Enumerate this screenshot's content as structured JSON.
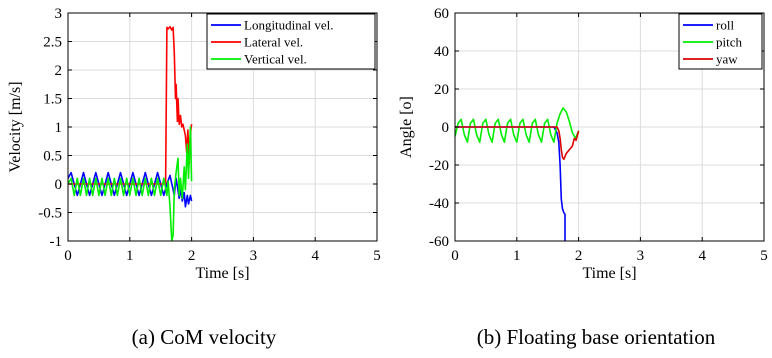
{
  "chart_data": [
    {
      "type": "line",
      "xlabel": "Time [s]",
      "ylabel": "Velocity [m/s]",
      "xlim": [
        0,
        5
      ],
      "ylim": [
        -1,
        3
      ],
      "xticks": [
        0,
        1,
        2,
        3,
        4,
        5
      ],
      "yticks": [
        -1,
        -0.5,
        0,
        0.5,
        1,
        1.5,
        2,
        2.5,
        3
      ],
      "ytick_labels": [
        "-1",
        "-0.5",
        "0",
        "0.5",
        "1",
        "1.5",
        "2",
        "2.5",
        "3"
      ],
      "grid": true,
      "legend_position": "top-right",
      "caption": "(a)  CoM velocity",
      "series": [
        {
          "name": "Longitudinal vel.",
          "color": "#0000ff",
          "x": [
            0,
            0.05,
            0.1,
            0.15,
            0.2,
            0.25,
            0.3,
            0.35,
            0.4,
            0.45,
            0.5,
            0.55,
            0.6,
            0.65,
            0.7,
            0.75,
            0.8,
            0.85,
            0.9,
            0.95,
            1.0,
            1.05,
            1.1,
            1.15,
            1.2,
            1.25,
            1.3,
            1.35,
            1.4,
            1.45,
            1.5,
            1.55,
            1.6,
            1.65,
            1.7,
            1.72,
            1.75,
            1.8,
            1.83,
            1.85,
            1.88,
            1.9,
            1.93,
            1.95,
            1.98,
            2.0
          ],
          "y": [
            0.1,
            0.2,
            0.0,
            -0.2,
            0.0,
            0.2,
            0.0,
            -0.2,
            0.0,
            0.2,
            0.0,
            -0.2,
            0.0,
            0.2,
            0.0,
            -0.2,
            0.0,
            0.2,
            0.0,
            -0.2,
            0.0,
            0.2,
            0.0,
            -0.2,
            0.0,
            0.2,
            0.0,
            -0.2,
            0.0,
            0.2,
            0.0,
            -0.2,
            0.0,
            0.15,
            -0.1,
            -0.2,
            0.1,
            -0.25,
            -0.1,
            -0.3,
            -0.15,
            -0.4,
            -0.2,
            -0.35,
            -0.2,
            -0.3
          ]
        },
        {
          "name": "Lateral vel.",
          "color": "#ff0000",
          "x": [
            0,
            1.5,
            1.58,
            1.6,
            1.62,
            1.65,
            1.68,
            1.7,
            1.72,
            1.74,
            1.75,
            1.77,
            1.78,
            1.8,
            1.82,
            1.84,
            1.86,
            1.88,
            1.9,
            1.92,
            1.94,
            1.96,
            1.98,
            2.0
          ],
          "y": [
            0,
            0,
            0,
            2.75,
            2.72,
            2.76,
            2.7,
            2.75,
            2.3,
            1.5,
            1.75,
            1.1,
            1.5,
            1.05,
            1.2,
            1.0,
            1.05,
            0.95,
            0.85,
            0.55,
            0.95,
            0.35,
            0.9,
            1.05
          ]
        },
        {
          "name": "Vertical vel.",
          "color": "#00ee00",
          "x": [
            0,
            0.05,
            0.1,
            0.15,
            0.2,
            0.25,
            0.3,
            0.35,
            0.4,
            0.45,
            0.5,
            0.55,
            0.6,
            0.65,
            0.7,
            0.75,
            0.8,
            0.85,
            0.9,
            0.95,
            1.0,
            1.05,
            1.1,
            1.15,
            1.2,
            1.25,
            1.3,
            1.35,
            1.4,
            1.45,
            1.5,
            1.55,
            1.6,
            1.62,
            1.65,
            1.68,
            1.7,
            1.72,
            1.75,
            1.78,
            1.8,
            1.82,
            1.85,
            1.88,
            1.9,
            1.93,
            1.95,
            1.98,
            2.0
          ],
          "y": [
            0,
            0.1,
            -0.2,
            0.1,
            -0.2,
            0.1,
            -0.2,
            0.1,
            -0.2,
            0.1,
            -0.2,
            0.1,
            -0.2,
            0.1,
            -0.2,
            0.1,
            -0.2,
            0.1,
            -0.2,
            0.1,
            -0.2,
            0.1,
            -0.2,
            0.1,
            -0.2,
            0.1,
            -0.2,
            0.1,
            -0.2,
            0.1,
            -0.2,
            0.1,
            -0.2,
            0.05,
            -0.4,
            -1.0,
            -0.9,
            -0.1,
            0.2,
            0.45,
            -0.2,
            0.1,
            -0.25,
            0.3,
            -0.1,
            0.7,
            0.1,
            1.0,
            0.05
          ]
        }
      ]
    },
    {
      "type": "line",
      "xlabel": "Time [s]",
      "ylabel": "Angle [o]",
      "xlim": [
        0,
        5
      ],
      "ylim": [
        -60,
        60
      ],
      "xticks": [
        0,
        1,
        2,
        3,
        4,
        5
      ],
      "yticks": [
        -60,
        -40,
        -20,
        0,
        20,
        40,
        60
      ],
      "ytick_labels": [
        "-60",
        "-40",
        "-20",
        "0",
        "20",
        "40",
        "60"
      ],
      "grid": true,
      "legend_position": "top-right",
      "caption": "(b)  Floating base orientation",
      "series": [
        {
          "name": "roll",
          "color": "#0000ff",
          "x": [
            0,
            1.6,
            1.65,
            1.68,
            1.7,
            1.72,
            1.74,
            1.76,
            1.78,
            1.78
          ],
          "y": [
            0,
            0,
            -3,
            -8,
            -20,
            -38,
            -43,
            -45,
            -46,
            -60
          ]
        },
        {
          "name": "pitch",
          "color": "#00ee00",
          "x": [
            0,
            0.05,
            0.1,
            0.15,
            0.2,
            0.25,
            0.3,
            0.35,
            0.4,
            0.45,
            0.5,
            0.55,
            0.6,
            0.65,
            0.7,
            0.75,
            0.8,
            0.85,
            0.9,
            0.95,
            1.0,
            1.05,
            1.1,
            1.15,
            1.2,
            1.25,
            1.3,
            1.35,
            1.4,
            1.45,
            1.5,
            1.55,
            1.6,
            1.65,
            1.7,
            1.75,
            1.8,
            1.85,
            1.9,
            1.95,
            2.0
          ],
          "y": [
            -5,
            2,
            4,
            -4,
            -8,
            2,
            4,
            -4,
            -8,
            2,
            4,
            -4,
            -8,
            2,
            4,
            -4,
            -8,
            2,
            4,
            -4,
            -8,
            2,
            4,
            -4,
            -8,
            2,
            4,
            -4,
            -8,
            2,
            4,
            -4,
            -8,
            2,
            7,
            10,
            8,
            3,
            -3,
            -6,
            -2
          ]
        },
        {
          "name": "yaw",
          "color": "#dd0000",
          "x": [
            0,
            1.65,
            1.68,
            1.7,
            1.72,
            1.74,
            1.76,
            1.8,
            1.85,
            1.9,
            1.93,
            1.96,
            2.0
          ],
          "y": [
            0,
            0,
            -2,
            -6,
            -12,
            -16,
            -17,
            -14,
            -12,
            -10,
            -6,
            -7,
            -2
          ]
        }
      ]
    }
  ]
}
